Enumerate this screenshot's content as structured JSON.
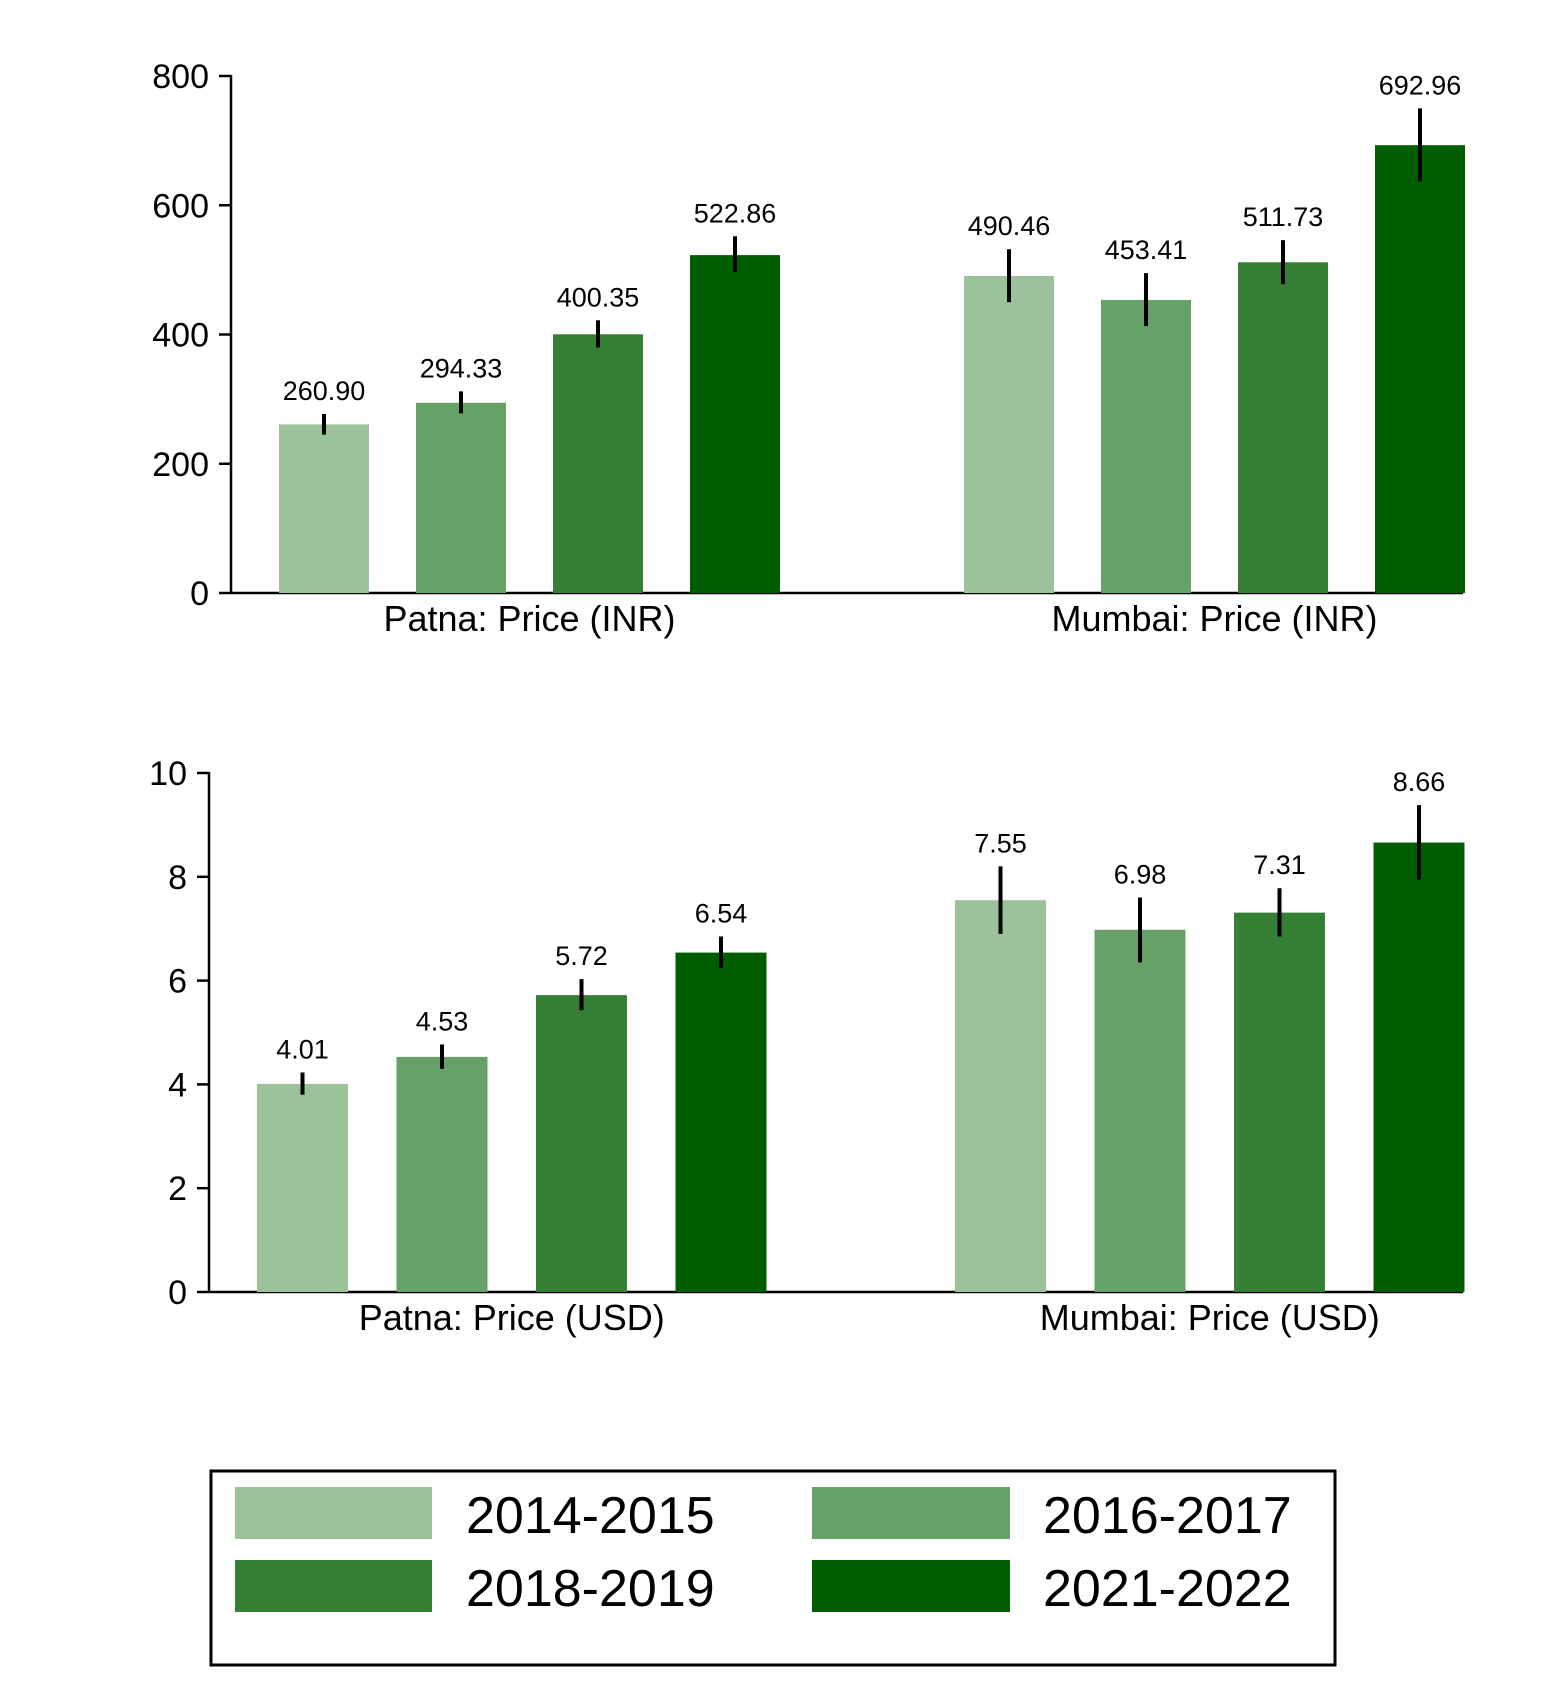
{
  "colors": [
    "#9bc29a",
    "#66a168",
    "#358034",
    "#005e00"
  ],
  "legend": {
    "placement": "bottom",
    "items": [
      "2014-2015",
      "2016-2017",
      "2018-2019",
      "2021-2022"
    ]
  },
  "chart_data": [
    {
      "type": "bar",
      "series": [
        "2014-2015",
        "2016-2017",
        "2018-2019",
        "2021-2022"
      ],
      "groups": [
        {
          "label": "Patna: Price (INR)",
          "values": [
            260.9,
            294.33,
            400.35,
            522.86
          ],
          "value_labels": [
            "260.90",
            "294.33",
            "400.35",
            "522.86"
          ],
          "error_low": [
            245,
            278,
            380,
            497
          ],
          "error_high": [
            277,
            312,
            422,
            552
          ]
        },
        {
          "label": "Mumbai: Price (INR)",
          "values": [
            490.46,
            453.41,
            511.73,
            692.96
          ],
          "value_labels": [
            "490.46",
            "453.41",
            "511.73",
            "692.96"
          ],
          "error_low": [
            450,
            413,
            478,
            637
          ],
          "error_high": [
            532,
            495,
            546,
            750
          ]
        }
      ],
      "yticks": [
        "0",
        "200",
        "400",
        "600",
        "800"
      ],
      "ylim": [
        0,
        800
      ],
      "grid": false
    },
    {
      "type": "bar",
      "series": [
        "2014-2015",
        "2016-2017",
        "2018-2019",
        "2021-2022"
      ],
      "groups": [
        {
          "label": "Patna: Price (USD)",
          "values": [
            4.01,
            4.53,
            5.72,
            6.54
          ],
          "value_labels": [
            "4.01",
            "4.53",
            "5.72",
            "6.54"
          ],
          "error_low": [
            3.8,
            4.3,
            5.43,
            6.24
          ],
          "error_high": [
            4.23,
            4.77,
            6.03,
            6.85
          ]
        },
        {
          "label": "Mumbai: Price (USD)",
          "values": [
            7.55,
            6.98,
            7.31,
            8.66
          ],
          "value_labels": [
            "7.55",
            "6.98",
            "7.31",
            "8.66"
          ],
          "error_low": [
            6.9,
            6.35,
            6.85,
            7.95
          ],
          "error_high": [
            8.2,
            7.6,
            7.78,
            9.38
          ]
        }
      ],
      "yticks": [
        "0",
        "2",
        "4",
        "6",
        "8",
        "10"
      ],
      "ylim": [
        0,
        10
      ],
      "grid": false
    }
  ]
}
